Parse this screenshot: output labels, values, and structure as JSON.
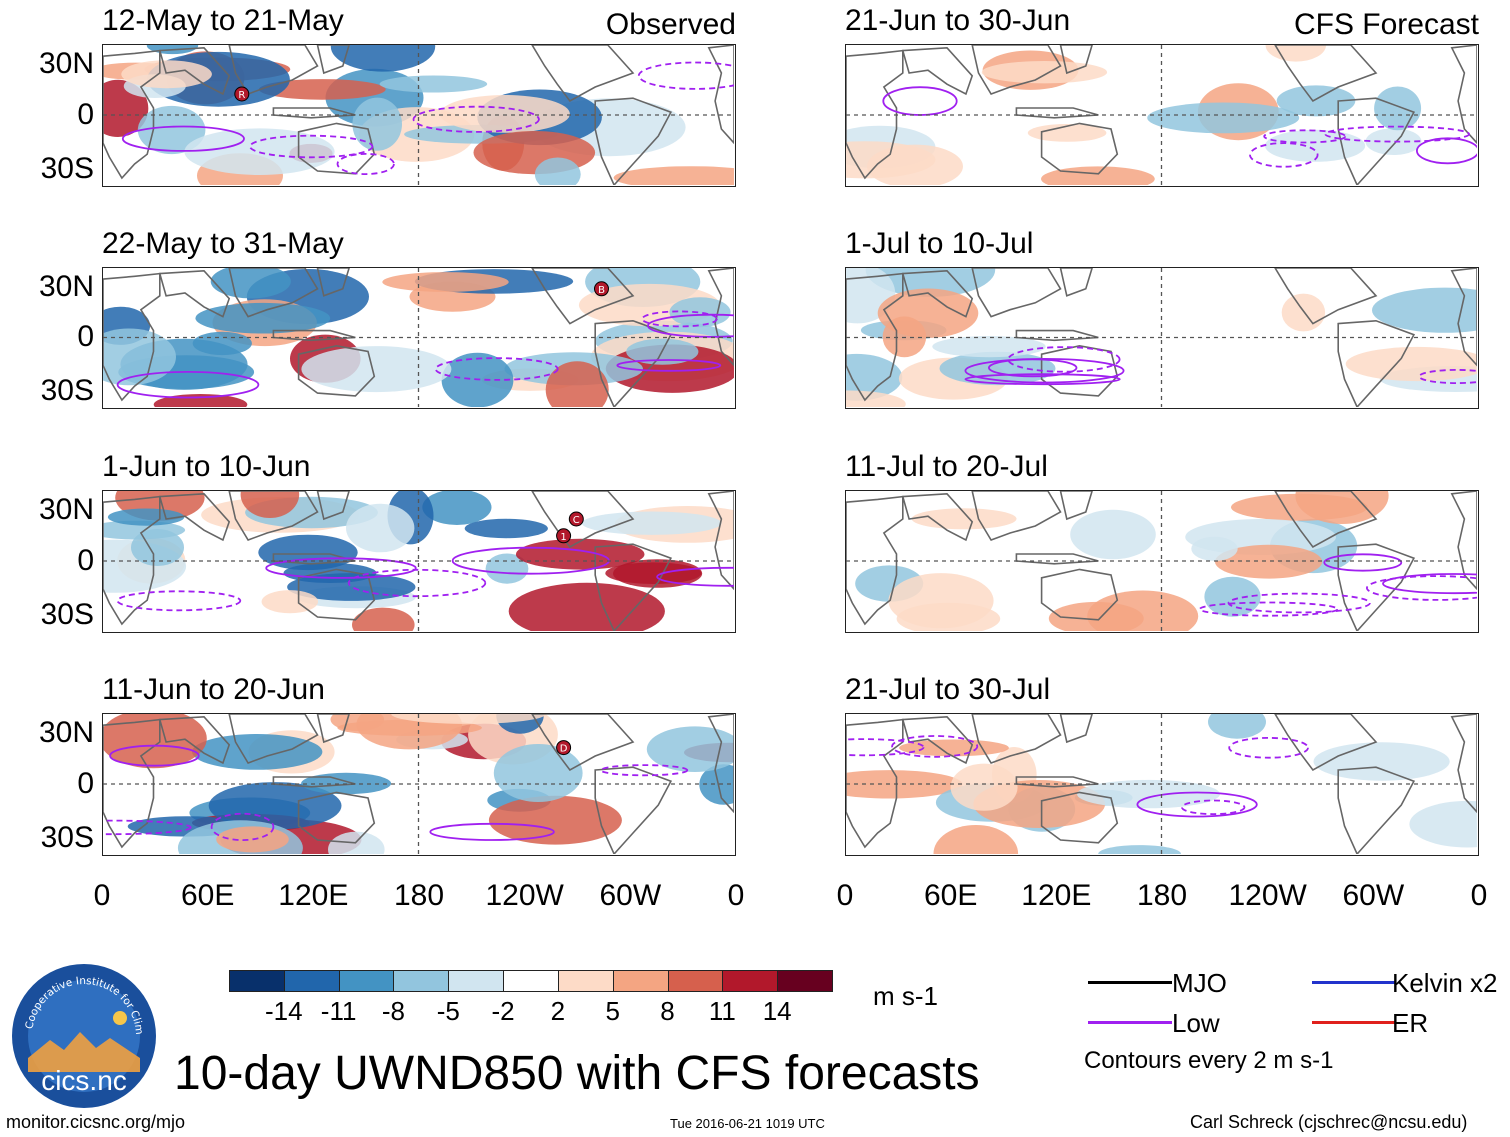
{
  "panels": [
    {
      "title": "12-May to 21-May",
      "tag": "Observed",
      "marks": [
        "R"
      ]
    },
    {
      "title": "21-Jun to 30-Jun",
      "tag": "CFS Forecast",
      "marks": []
    },
    {
      "title": "22-May to 31-May",
      "tag": "",
      "marks": [
        "B"
      ]
    },
    {
      "title": "1-Jul to 10-Jul",
      "tag": "",
      "marks": []
    },
    {
      "title": "1-Jun to 10-Jun",
      "tag": "",
      "marks": [
        "1",
        "C"
      ]
    },
    {
      "title": "11-Jul to 20-Jul",
      "tag": "",
      "marks": []
    },
    {
      "title": "11-Jun to 20-Jun",
      "tag": "",
      "marks": [
        "D"
      ]
    },
    {
      "title": "21-Jul to 30-Jul",
      "tag": "",
      "marks": []
    }
  ],
  "y_ticks": [
    "30N",
    "0",
    "30S"
  ],
  "x_ticks": [
    "0",
    "60E",
    "120E",
    "180",
    "120W",
    "60W",
    "0"
  ],
  "colorbar": {
    "colors": [
      "#08306b",
      "#2166ac",
      "#4393c3",
      "#92c5de",
      "#d1e5f0",
      "#ffffff",
      "#fddbc7",
      "#f4a582",
      "#d6604d",
      "#b2182b",
      "#67001f"
    ],
    "labels": [
      "-14",
      "-11",
      "-8",
      "-5",
      "-2",
      "2",
      "5",
      "8",
      "11",
      "14"
    ],
    "units": "m s-1"
  },
  "legend": {
    "items": [
      {
        "label": "MJO",
        "color": "#000000"
      },
      {
        "label": "Kelvin x2",
        "color": "#2233cc"
      },
      {
        "label": "Low",
        "color": "#a020f0"
      },
      {
        "label": "ER",
        "color": "#e0201c"
      }
    ],
    "note": "Contours every 2 m s-1"
  },
  "logo": {
    "text": "cics.nc",
    "ring_text": "Cooperative Institute for Climate and Satellites"
  },
  "main_title": "10-day UWND850 with CFS forecasts",
  "footer": {
    "left": "monitor.cicsnc.org/mjo",
    "center": "Tue 2016-06-21 1019 UTC",
    "right": "Carl Schreck (cjschrec@ncsu.edu)"
  }
}
